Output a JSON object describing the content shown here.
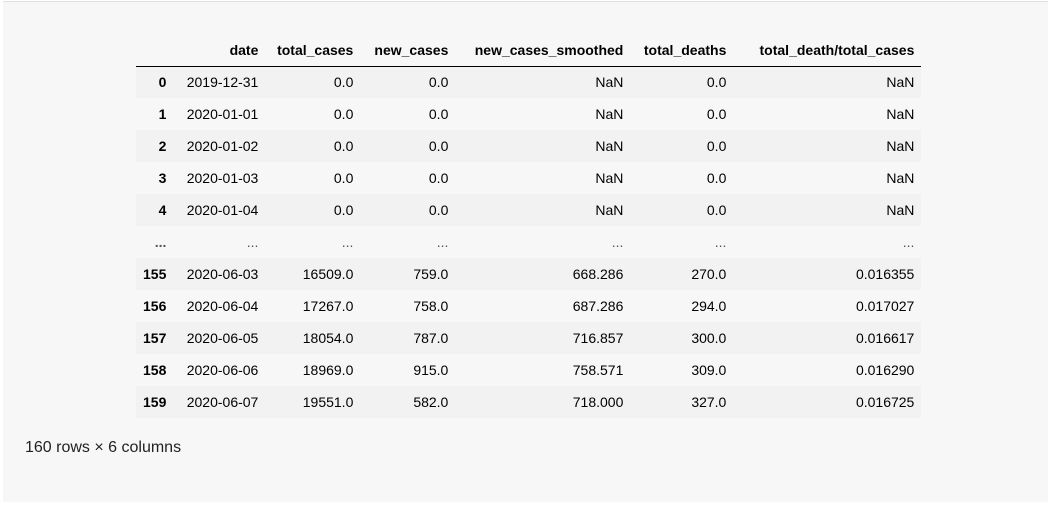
{
  "dataframe": {
    "columns": [
      "",
      "date",
      "total_cases",
      "new_cases",
      "new_cases_smoothed",
      "total_deaths",
      "total_death/total_cases"
    ],
    "rows": [
      [
        "0",
        "2019-12-31",
        "0.0",
        "0.0",
        "NaN",
        "0.0",
        "NaN"
      ],
      [
        "1",
        "2020-01-01",
        "0.0",
        "0.0",
        "NaN",
        "0.0",
        "NaN"
      ],
      [
        "2",
        "2020-01-02",
        "0.0",
        "0.0",
        "NaN",
        "0.0",
        "NaN"
      ],
      [
        "3",
        "2020-01-03",
        "0.0",
        "0.0",
        "NaN",
        "0.0",
        "NaN"
      ],
      [
        "4",
        "2020-01-04",
        "0.0",
        "0.0",
        "NaN",
        "0.0",
        "NaN"
      ],
      [
        "...",
        "...",
        "...",
        "...",
        "...",
        "...",
        "..."
      ],
      [
        "155",
        "2020-06-03",
        "16509.0",
        "759.0",
        "668.286",
        "270.0",
        "0.016355"
      ],
      [
        "156",
        "2020-06-04",
        "17267.0",
        "758.0",
        "687.286",
        "294.0",
        "0.017027"
      ],
      [
        "157",
        "2020-06-05",
        "18054.0",
        "787.0",
        "716.857",
        "300.0",
        "0.016617"
      ],
      [
        "158",
        "2020-06-06",
        "18969.0",
        "915.0",
        "758.571",
        "309.0",
        "0.016290"
      ],
      [
        "159",
        "2020-06-07",
        "19551.0",
        "582.0",
        "718.000",
        "327.0",
        "0.016725"
      ]
    ],
    "shape_text": "160 rows × 6 columns"
  }
}
